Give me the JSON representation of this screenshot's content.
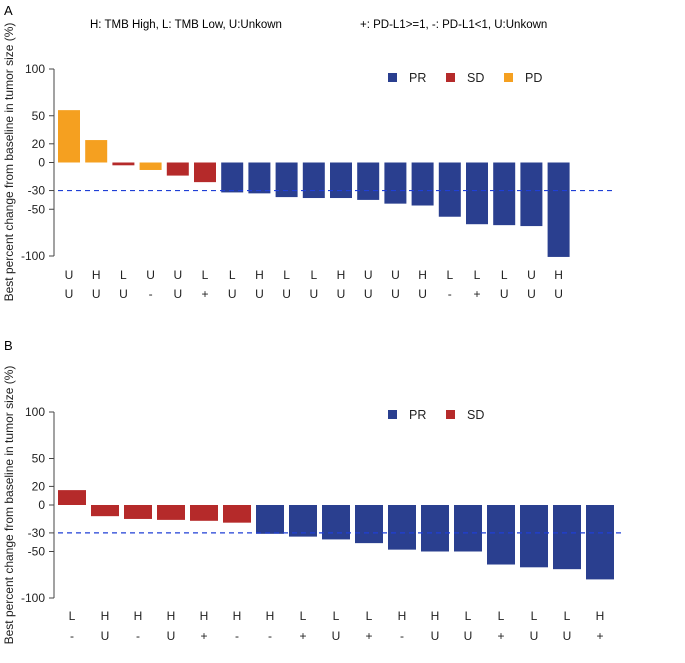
{
  "panel_a_label": "A",
  "panel_b_label": "B",
  "legend_note_tmb": "H: TMB High, L: TMB Low, U:Unkown",
  "legend_note_pdl1": "+: PD-L1>=1, -: PD-L1<1, U:Unkown",
  "colors": {
    "PR": "#2a3f8f",
    "SD": "#b52a2a",
    "PD": "#f5a020",
    "threshold": "#1f3fd6"
  },
  "chart_data": [
    {
      "type": "bar",
      "panel": "A",
      "ylabel": "Best percent change from baseline in tumor size (%)",
      "yticks": [
        100,
        50,
        20,
        0,
        -30,
        -50,
        -100
      ],
      "ylim": [
        -100,
        100
      ],
      "reference_line": -30,
      "legend": [
        "PR",
        "SD",
        "PD"
      ],
      "legend_position": "top-right",
      "bars": [
        {
          "value": 56,
          "response": "PD",
          "tmb": "U",
          "pdl1": "U"
        },
        {
          "value": 24,
          "response": "PD",
          "tmb": "H",
          "pdl1": "U"
        },
        {
          "value": -3,
          "response": "SD",
          "tmb": "L",
          "pdl1": "U"
        },
        {
          "value": -8,
          "response": "PD",
          "tmb": "U",
          "pdl1": "-"
        },
        {
          "value": -14,
          "response": "SD",
          "tmb": "U",
          "pdl1": "U"
        },
        {
          "value": -21,
          "response": "SD",
          "tmb": "L",
          "pdl1": "+"
        },
        {
          "value": -32,
          "response": "PR",
          "tmb": "L",
          "pdl1": "U"
        },
        {
          "value": -33,
          "response": "PR",
          "tmb": "H",
          "pdl1": "U"
        },
        {
          "value": -37,
          "response": "PR",
          "tmb": "L",
          "pdl1": "U"
        },
        {
          "value": -38,
          "response": "PR",
          "tmb": "L",
          "pdl1": "U"
        },
        {
          "value": -38,
          "response": "PR",
          "tmb": "H",
          "pdl1": "U"
        },
        {
          "value": -40,
          "response": "PR",
          "tmb": "U",
          "pdl1": "U"
        },
        {
          "value": -44,
          "response": "PR",
          "tmb": "U",
          "pdl1": "U"
        },
        {
          "value": -46,
          "response": "PR",
          "tmb": "H",
          "pdl1": "U"
        },
        {
          "value": -58,
          "response": "PR",
          "tmb": "L",
          "pdl1": "-"
        },
        {
          "value": -66,
          "response": "PR",
          "tmb": "L",
          "pdl1": "+"
        },
        {
          "value": -67,
          "response": "PR",
          "tmb": "L",
          "pdl1": "U"
        },
        {
          "value": -68,
          "response": "PR",
          "tmb": "U",
          "pdl1": "U"
        },
        {
          "value": -101,
          "response": "PR",
          "tmb": "H",
          "pdl1": "U"
        }
      ]
    },
    {
      "type": "bar",
      "panel": "B",
      "ylabel": "Best percent change from baseline in tumor size (%)",
      "yticks": [
        100,
        50,
        20,
        0,
        -30,
        -50,
        -100
      ],
      "ylim": [
        -100,
        100
      ],
      "reference_line": -30,
      "legend": [
        "PR",
        "SD"
      ],
      "legend_position": "top-right",
      "bars": [
        {
          "value": 16,
          "response": "SD",
          "tmb": "L",
          "pdl1": "-"
        },
        {
          "value": -12,
          "response": "SD",
          "tmb": "H",
          "pdl1": "U"
        },
        {
          "value": -15,
          "response": "SD",
          "tmb": "H",
          "pdl1": "-"
        },
        {
          "value": -16,
          "response": "SD",
          "tmb": "H",
          "pdl1": "U"
        },
        {
          "value": -17,
          "response": "SD",
          "tmb": "H",
          "pdl1": "+"
        },
        {
          "value": -19,
          "response": "SD",
          "tmb": "H",
          "pdl1": "-"
        },
        {
          "value": -31,
          "response": "PR",
          "tmb": "H",
          "pdl1": "-"
        },
        {
          "value": -34,
          "response": "PR",
          "tmb": "L",
          "pdl1": "+"
        },
        {
          "value": -37,
          "response": "PR",
          "tmb": "L",
          "pdl1": "U"
        },
        {
          "value": -41,
          "response": "PR",
          "tmb": "L",
          "pdl1": "+"
        },
        {
          "value": -48,
          "response": "PR",
          "tmb": "H",
          "pdl1": "-"
        },
        {
          "value": -50,
          "response": "PR",
          "tmb": "H",
          "pdl1": "U"
        },
        {
          "value": -50,
          "response": "PR",
          "tmb": "L",
          "pdl1": "U"
        },
        {
          "value": -64,
          "response": "PR",
          "tmb": "L",
          "pdl1": "+"
        },
        {
          "value": -67,
          "response": "PR",
          "tmb": "L",
          "pdl1": "U"
        },
        {
          "value": -69,
          "response": "PR",
          "tmb": "L",
          "pdl1": "U"
        },
        {
          "value": -80,
          "response": "PR",
          "tmb": "H",
          "pdl1": "+"
        }
      ]
    }
  ]
}
